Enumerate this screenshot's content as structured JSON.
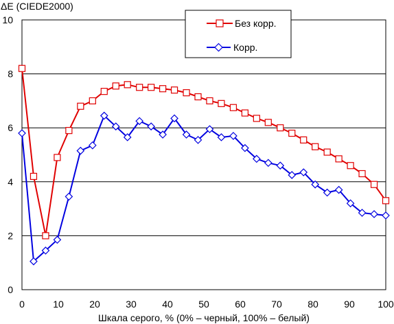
{
  "chart_data": {
    "type": "line",
    "title": "",
    "ylabel": "ΔE (CIEDE2000)",
    "xlabel": "Шкала серого, % (0% – черный, 100% – белый)",
    "xlim": [
      0,
      100
    ],
    "ylim": [
      0,
      10
    ],
    "xticks": [
      0,
      10,
      20,
      30,
      40,
      50,
      60,
      70,
      80,
      90,
      100
    ],
    "yticks": [
      0,
      2,
      4,
      6,
      8,
      10
    ],
    "grid": "horizontal",
    "legend_position": "top-right",
    "x": [
      0,
      3.2,
      6.5,
      9.7,
      12.9,
      16.1,
      19.4,
      22.6,
      25.8,
      29.0,
      32.3,
      35.5,
      38.7,
      41.9,
      45.2,
      48.4,
      51.6,
      54.8,
      58.1,
      61.3,
      64.5,
      67.7,
      71.0,
      74.2,
      77.4,
      80.6,
      83.9,
      87.1,
      90.3,
      93.5,
      96.8,
      100
    ],
    "series": [
      {
        "name": "Без корр.",
        "color": "#e00000",
        "marker": "square",
        "values": [
          8.2,
          4.2,
          2.0,
          4.9,
          5.9,
          6.8,
          7.0,
          7.35,
          7.55,
          7.6,
          7.5,
          7.5,
          7.45,
          7.4,
          7.3,
          7.15,
          7.0,
          6.9,
          6.75,
          6.55,
          6.35,
          6.2,
          6.0,
          5.8,
          5.55,
          5.3,
          5.1,
          4.85,
          4.6,
          4.3,
          3.9,
          3.3
        ]
      },
      {
        "name": "Корр.",
        "color": "#0000e0",
        "marker": "diamond",
        "values": [
          5.8,
          1.05,
          1.45,
          1.85,
          3.45,
          5.15,
          5.35,
          6.45,
          6.05,
          5.65,
          6.25,
          6.05,
          5.75,
          6.35,
          5.75,
          5.55,
          5.95,
          5.65,
          5.7,
          5.25,
          4.85,
          4.7,
          4.6,
          4.25,
          4.35,
          3.9,
          3.6,
          3.7,
          3.2,
          2.85,
          2.8,
          2.75
        ]
      }
    ]
  }
}
